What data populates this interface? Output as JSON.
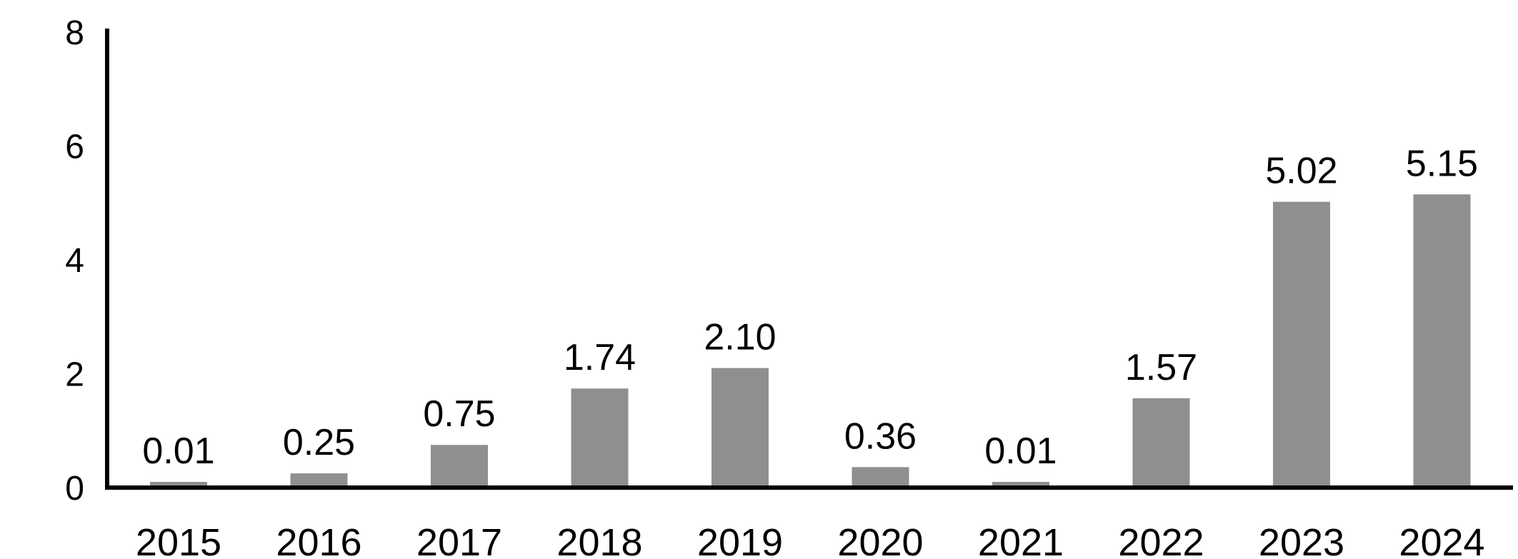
{
  "chart_data": {
    "type": "bar",
    "title": "",
    "xlabel": "",
    "ylabel": "",
    "categories": [
      "2015",
      "2016",
      "2017",
      "2018",
      "2019",
      "2020",
      "2021",
      "2022",
      "2023",
      "2024"
    ],
    "values": [
      0.01,
      0.25,
      0.75,
      1.74,
      2.1,
      0.36,
      0.01,
      1.57,
      5.02,
      5.15
    ],
    "value_labels": [
      "0.01",
      "0.25",
      "0.75",
      "1.74",
      "2.10",
      "0.36",
      "0.01",
      "1.57",
      "5.02",
      "5.15"
    ],
    "ylim": [
      0,
      8
    ],
    "yticks": [
      "0",
      "2",
      "4",
      "6",
      "8"
    ],
    "grid": false,
    "legend": "none",
    "bar_color": "#8f8f8f",
    "axis_color": "#000000"
  }
}
